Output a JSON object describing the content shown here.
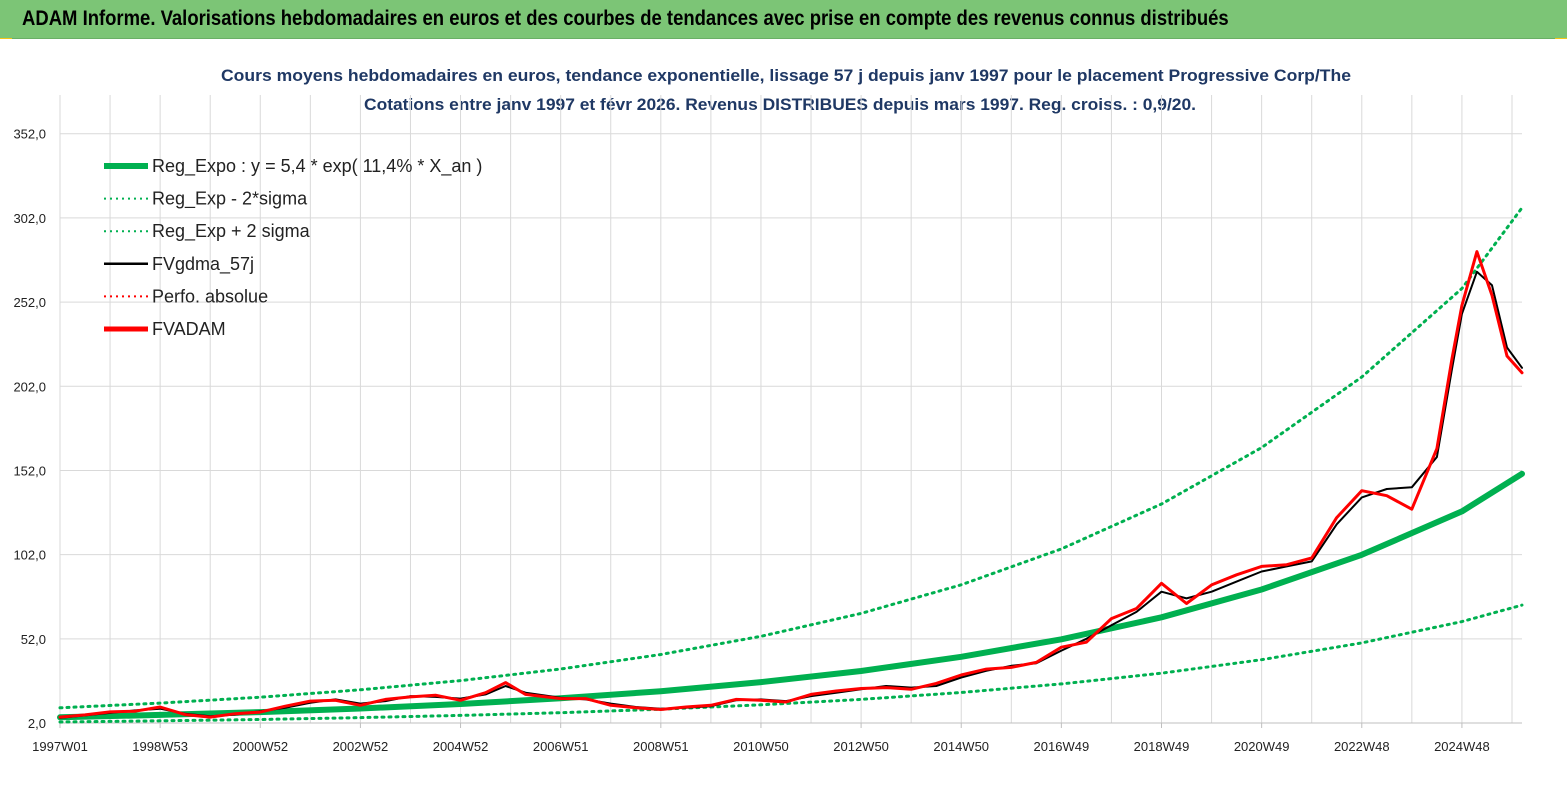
{
  "header": {
    "title": "ADAM Informe. Valorisations hebdomadaires en euros et des courbes de tendances avec prise en compte des revenus connus distribués"
  },
  "colors": {
    "header_bg": "#7cc576",
    "reg_expo": "#00b050",
    "sigma": "#00b050",
    "fvgdma": "#000000",
    "perfo": "#ff0000",
    "fvadam": "#ff0000",
    "grid": "#d9d9d9",
    "title_text": "#1f3864"
  },
  "chart_data": {
    "type": "line",
    "title_line1": "Cours moyens hebdomadaires en euros, tendance exponentielle, lissage 57 j depuis janv 1997 pour le placement Progressive Corp/The",
    "title_line2": "Cotations entre janv 1997 et févr 2026. Revenus DISTRIBUES depuis mars 1997. Reg. croiss. : 0,9/20.",
    "xlim": [
      1997.0,
      2026.2
    ],
    "ylim": [
      2.0,
      375.0
    ],
    "yticks": [
      2.0,
      52.0,
      102.0,
      152.0,
      202.0,
      252.0,
      302.0,
      352.0
    ],
    "ytick_labels": [
      "2,0",
      "52,0",
      "102,0",
      "152,0",
      "202,0",
      "252,0",
      "302,0",
      "352,0"
    ],
    "xticks": [
      1997.0,
      1999.0,
      2001.0,
      2003.0,
      2005.0,
      2007.0,
      2009.0,
      2011.0,
      2013.0,
      2015.0,
      2017.0,
      2019.0,
      2021.0,
      2023.0,
      2025.0
    ],
    "xtick_labels": [
      "1997W01",
      "1998W53",
      "2000W52",
      "2002W52",
      "2004W52",
      "2006W51",
      "2008W51",
      "2010W50",
      "2012W50",
      "2014W50",
      "2016W49",
      "2018W49",
      "2020W49",
      "2022W48",
      "2024W48"
    ],
    "grid": true,
    "legend_position": "top-left",
    "legend": [
      {
        "label": "Reg_Expo : y = 5,4 * exp( 11,4% *  X_an )",
        "color": "#00b050",
        "style": "thick"
      },
      {
        "label": "Reg_Exp - 2*sigma",
        "color": "#00b050",
        "style": "dotted"
      },
      {
        "label": "Reg_Exp + 2 sigma",
        "color": "#00b050",
        "style": "dotted"
      },
      {
        "label": "FVgdma_57j",
        "color": "#000000",
        "style": "solid"
      },
      {
        "label": "Perfo. absolue",
        "color": "#ff0000",
        "style": "dotted"
      },
      {
        "label": "FVADAM",
        "color": "#ff0000",
        "style": "thick"
      }
    ],
    "series": [
      {
        "name": "Reg_Expo : y = 5,4 * exp( 11,4% *  X_an )",
        "x": [
          1997.0,
          1999.0,
          2001.0,
          2003.0,
          2005.0,
          2007.0,
          2009.0,
          2011.0,
          2013.0,
          2015.0,
          2017.0,
          2019.0,
          2021.0,
          2023.0,
          2025.0,
          2026.2
        ],
        "values": [
          5.4,
          6.8,
          8.5,
          10.6,
          13.3,
          16.7,
          20.9,
          26.3,
          32.9,
          41.3,
          51.7,
          64.8,
          81.3,
          101.9,
          127.7,
          150.0
        ]
      },
      {
        "name": "Reg_Exp - 2*sigma",
        "x": [
          1997.0,
          1999.0,
          2001.0,
          2003.0,
          2005.0,
          2007.0,
          2009.0,
          2011.0,
          2013.0,
          2015.0,
          2017.0,
          2019.0,
          2021.0,
          2023.0,
          2025.0,
          2026.2
        ],
        "values": [
          2.6,
          3.3,
          4.1,
          5.2,
          6.5,
          8.1,
          10.2,
          12.8,
          16.0,
          20.1,
          25.2,
          31.6,
          39.6,
          49.6,
          62.2,
          72.0
        ]
      },
      {
        "name": "Reg_Exp + 2 sigma",
        "x": [
          1997.0,
          1999.0,
          2001.0,
          2003.0,
          2005.0,
          2007.0,
          2009.0,
          2011.0,
          2013.0,
          2015.0,
          2017.0,
          2019.0,
          2021.0,
          2023.0,
          2025.0,
          2026.2
        ],
        "values": [
          11.0,
          13.8,
          17.3,
          21.7,
          27.2,
          34.1,
          42.7,
          53.5,
          67.1,
          84.1,
          105.4,
          132.1,
          165.6,
          207.5,
          260.1,
          308.0
        ]
      },
      {
        "name": "FVgdma_57j",
        "x": [
          1997.0,
          1997.5,
          1998.0,
          1998.5,
          1999.0,
          1999.5,
          2000.0,
          2000.5,
          2001.0,
          2001.5,
          2002.0,
          2002.5,
          2003.0,
          2003.5,
          2004.0,
          2004.5,
          2005.0,
          2005.5,
          2005.9,
          2006.3,
          2007.0,
          2007.5,
          2008.0,
          2008.5,
          2009.0,
          2009.5,
          2010.0,
          2010.5,
          2011.0,
          2011.5,
          2012.0,
          2012.5,
          2013.0,
          2013.5,
          2014.0,
          2014.5,
          2015.0,
          2015.5,
          2016.0,
          2016.5,
          2017.0,
          2017.5,
          2018.0,
          2018.5,
          2019.0,
          2019.5,
          2020.0,
          2020.5,
          2021.0,
          2021.5,
          2022.0,
          2022.5,
          2023.0,
          2023.5,
          2024.0,
          2024.5,
          2024.8,
          2025.0,
          2025.3,
          2025.6,
          2025.9,
          2026.2
        ],
        "values": [
          5.0,
          6.5,
          8.0,
          9.5,
          10.5,
          7.5,
          6.0,
          7.0,
          9.0,
          11.0,
          14.0,
          16.0,
          13.5,
          15.0,
          18.0,
          17.5,
          16.5,
          19.0,
          24.0,
          20.0,
          17.0,
          16.0,
          13.5,
          11.5,
          10.5,
          11.0,
          12.0,
          15.5,
          16.0,
          15.0,
          18.0,
          20.0,
          22.0,
          24.0,
          23.0,
          24.0,
          29.0,
          33.0,
          36.0,
          37.5,
          45.0,
          52.0,
          60.0,
          68.0,
          80.0,
          76.0,
          80.0,
          86.0,
          92.0,
          95.0,
          98.0,
          120.0,
          136.0,
          141.0,
          142.0,
          160.0,
          212.0,
          245.0,
          270.0,
          262.0,
          225.0,
          213.0
        ]
      },
      {
        "name": "FVADAM",
        "x": [
          1997.0,
          1997.5,
          1998.0,
          1998.5,
          1999.0,
          1999.5,
          2000.0,
          2000.5,
          2001.0,
          2001.5,
          2002.0,
          2002.5,
          2003.0,
          2003.5,
          2004.0,
          2004.5,
          2005.0,
          2005.5,
          2005.9,
          2006.3,
          2007.0,
          2007.5,
          2008.0,
          2008.5,
          2009.0,
          2009.5,
          2010.0,
          2010.5,
          2011.0,
          2011.5,
          2012.0,
          2012.5,
          2013.0,
          2013.5,
          2014.0,
          2014.5,
          2015.0,
          2015.5,
          2016.0,
          2016.5,
          2017.0,
          2017.5,
          2018.0,
          2018.5,
          2019.0,
          2019.5,
          2020.0,
          2020.5,
          2021.0,
          2021.5,
          2022.0,
          2022.5,
          2023.0,
          2023.5,
          2024.0,
          2024.5,
          2024.8,
          2025.0,
          2025.3,
          2025.6,
          2025.9,
          2026.2
        ],
        "values": [
          5.5,
          6.8,
          8.6,
          9.0,
          11.5,
          7.0,
          5.5,
          7.5,
          8.5,
          12.0,
          15.0,
          15.5,
          12.5,
          16.0,
          17.5,
          18.5,
          15.5,
          20.0,
          26.0,
          19.0,
          16.5,
          16.5,
          12.5,
          11.0,
          10.0,
          11.5,
          12.5,
          16.0,
          15.5,
          14.5,
          19.0,
          21.0,
          22.5,
          23.0,
          22.0,
          25.5,
          30.5,
          34.0,
          35.0,
          38.0,
          47.0,
          50.0,
          64.0,
          70.0,
          85.0,
          73.0,
          84.0,
          90.0,
          95.0,
          96.0,
          100.0,
          124.0,
          140.0,
          137.0,
          129.0,
          165.0,
          218.0,
          250.0,
          282.0,
          256.0,
          220.0,
          210.0
        ]
      }
    ]
  }
}
